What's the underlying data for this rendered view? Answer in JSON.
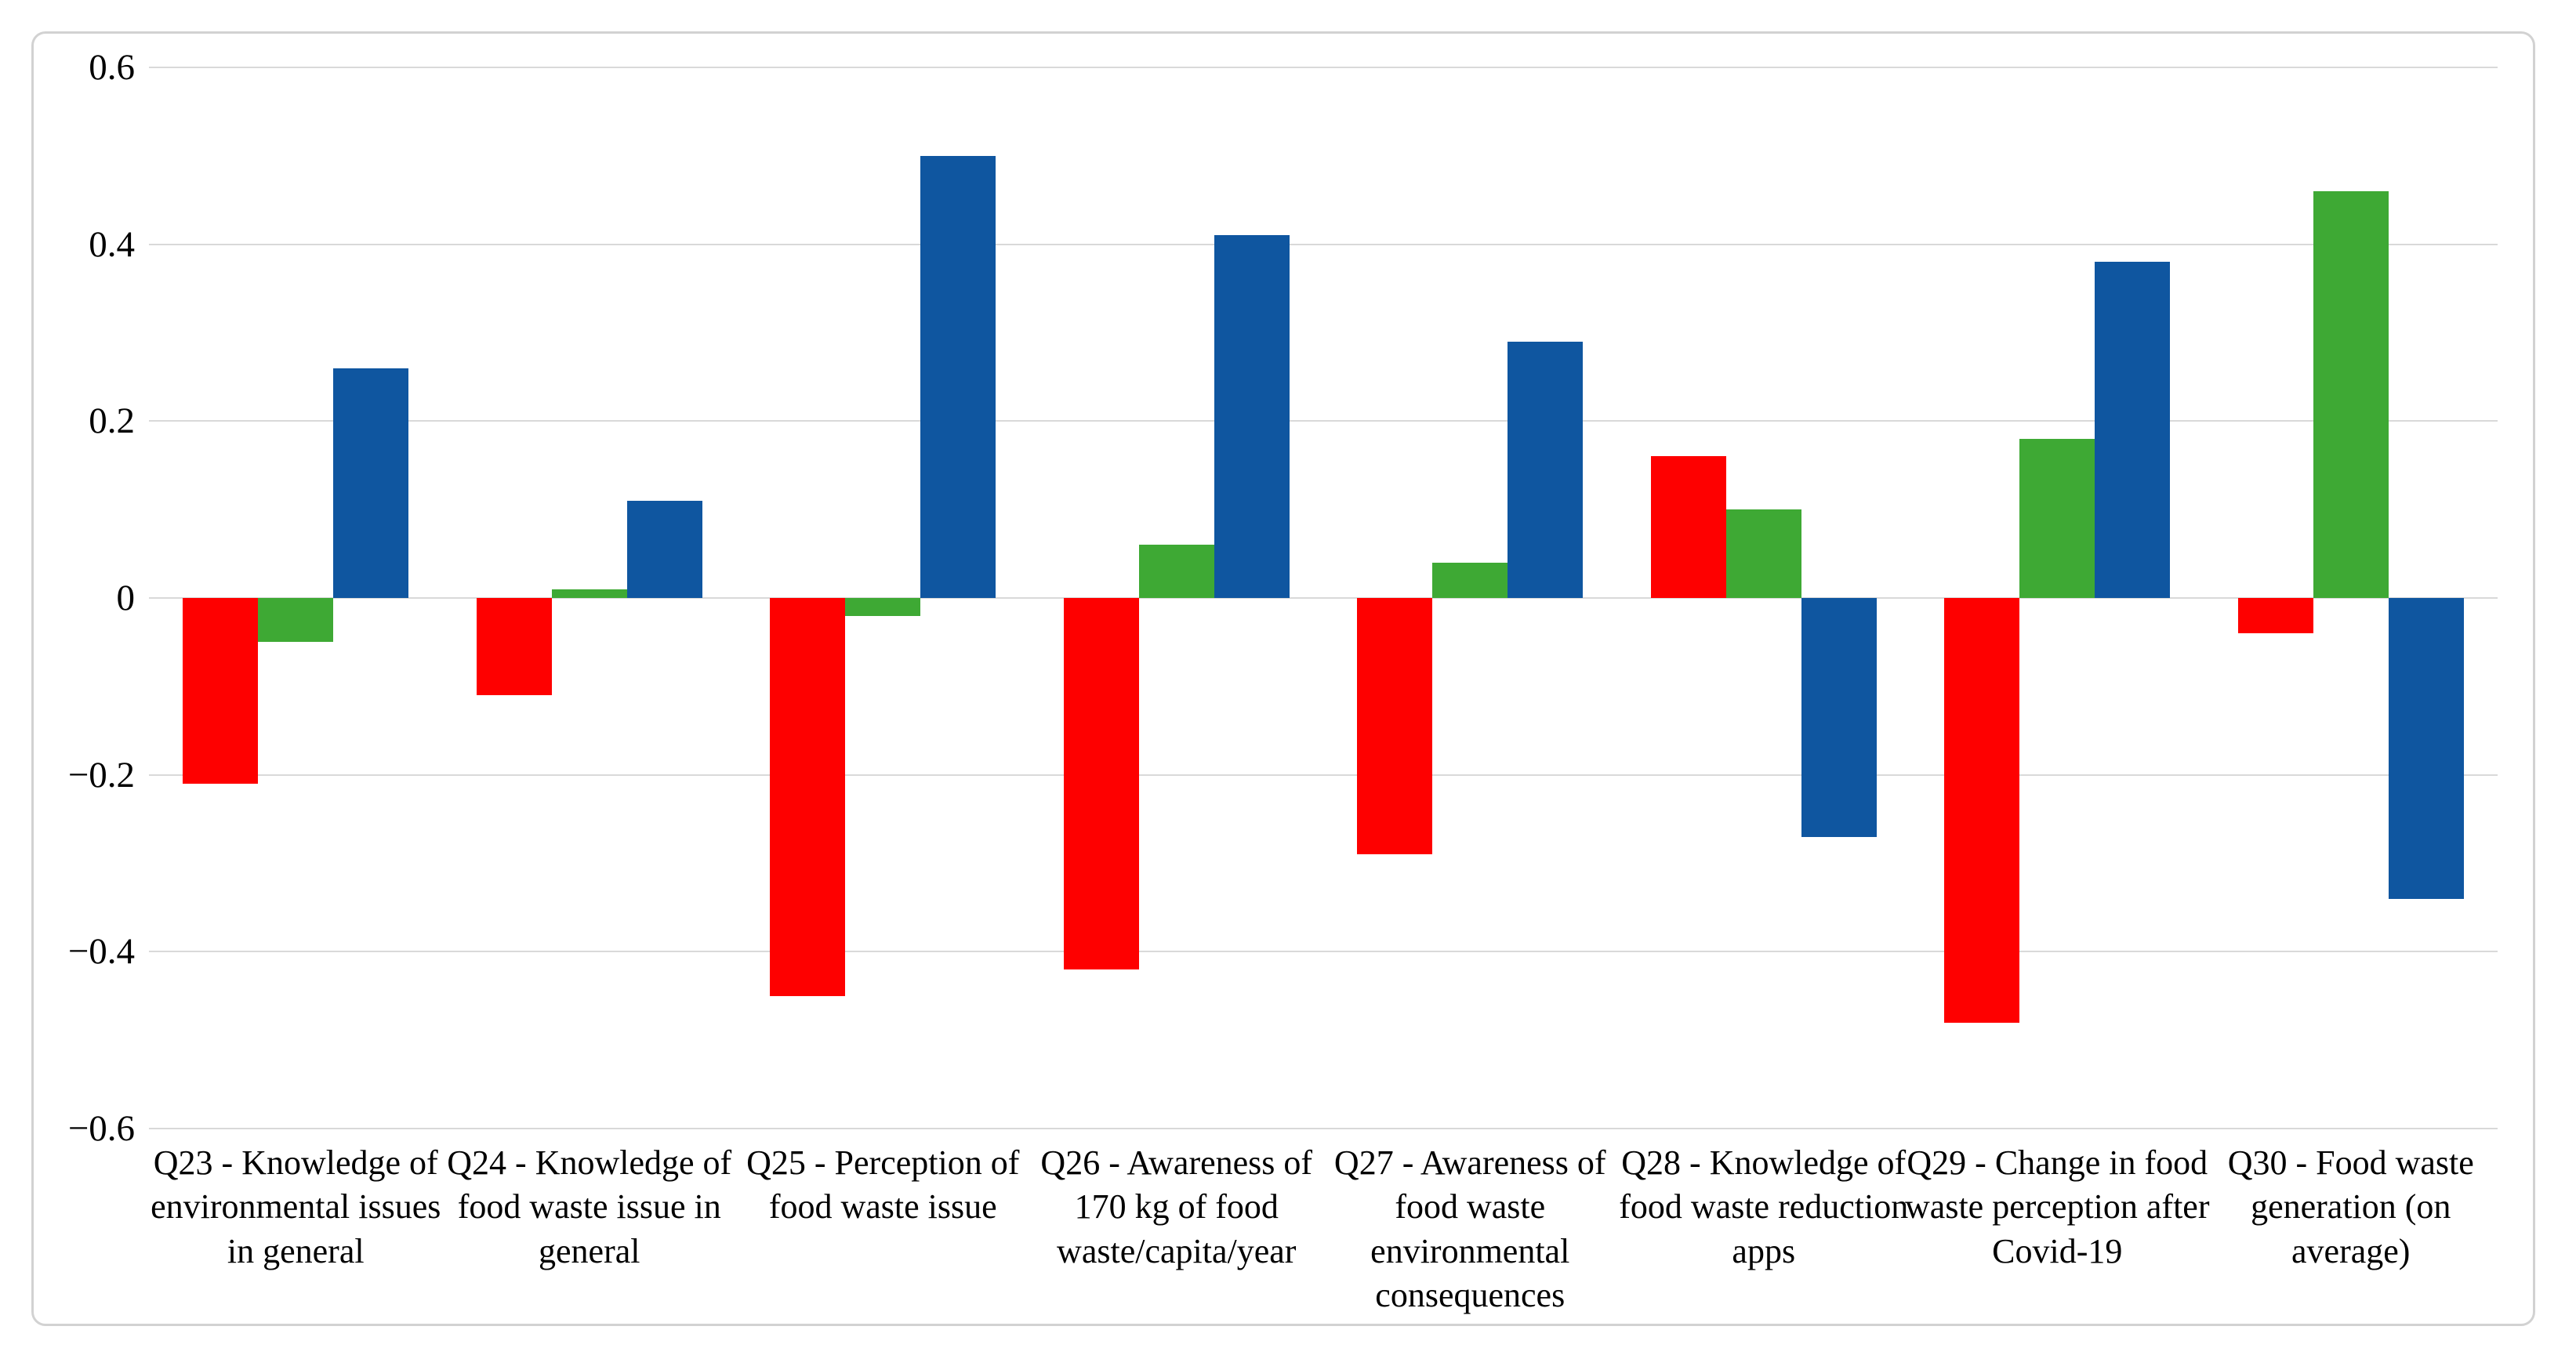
{
  "figure": {
    "background_color": "#ffffff",
    "frame_border_color": "#d2d2d2",
    "text_color": "#000000"
  },
  "chart_data": {
    "type": "bar",
    "title": "",
    "xlabel": "",
    "ylabel": "",
    "grid": true,
    "gridline_color": "#d9d9d9",
    "legend": "none",
    "ylim": [
      -0.6,
      0.6
    ],
    "ytick_step": 0.2,
    "ytick_labels": [
      "0.6",
      "0.4",
      "0.2",
      "0",
      "−0.2",
      "−0.4",
      "−0.6"
    ],
    "categories": [
      "Q23 - Knowledge of environmental issues in general",
      "Q24 - Knowledge of food waste issue in general",
      "Q25 - Perception of food waste issue",
      "Q26 - Awareness of 170 kg of food waste/capita/year",
      "Q27 - Awareness of food waste environmental consequences",
      "Q28 - Knowledge of food waste reduction apps",
      "Q29 - Change in food waste perception after Covid-19",
      "Q30 - Food waste generation (on average)"
    ],
    "series": [
      {
        "name": "red",
        "color": "#fe0000",
        "values": [
          -0.21,
          -0.11,
          -0.45,
          -0.42,
          -0.29,
          0.16,
          -0.48,
          -0.04
        ]
      },
      {
        "name": "green",
        "color": "#3ea934",
        "values": [
          -0.05,
          0.01,
          -0.02,
          0.06,
          0.04,
          0.1,
          0.18,
          0.46
        ]
      },
      {
        "name": "blue",
        "color": "#0f56a0",
        "values": [
          0.26,
          0.11,
          0.5,
          0.41,
          0.29,
          -0.27,
          0.38,
          -0.34
        ]
      }
    ]
  }
}
